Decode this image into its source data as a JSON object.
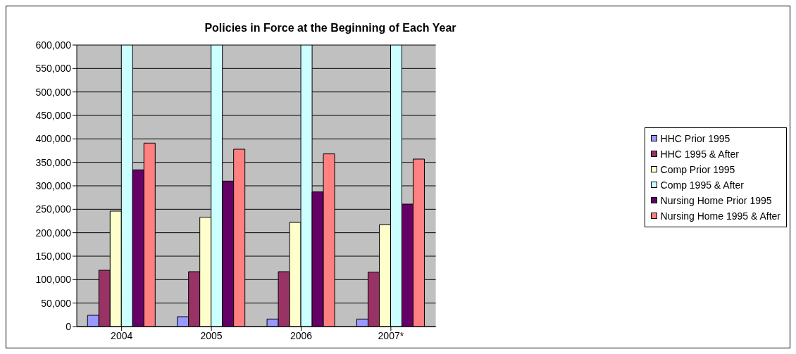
{
  "chart_data": {
    "type": "bar",
    "title": "Policies in Force at the Beginning of Each Year",
    "categories": [
      "2004",
      "2005",
      "2006",
      "2007*"
    ],
    "series": [
      {
        "name": "HHC Prior 1995",
        "color": "#9999ff",
        "values": [
          24000,
          21000,
          16000,
          16000
        ]
      },
      {
        "name": "HHC 1995 & After",
        "color": "#993366",
        "values": [
          120000,
          117000,
          117000,
          116000
        ]
      },
      {
        "name": "Comp Prior 1995",
        "color": "#ffffcc",
        "values": [
          246000,
          233000,
          222000,
          217000
        ]
      },
      {
        "name": "Comp 1995 & After",
        "color": "#ccffff",
        "values": [
          600000,
          600000,
          600000,
          600000
        ]
      },
      {
        "name": "Nursing Home Prior 1995",
        "color": "#660066",
        "values": [
          334000,
          310000,
          287000,
          261000
        ]
      },
      {
        "name": "Nursing Home 1995 & After",
        "color": "#ff8080",
        "values": [
          391000,
          378000,
          368000,
          357000
        ]
      }
    ],
    "ylim": [
      0,
      600000
    ],
    "yticks": [
      0,
      {
        "value": 50000,
        "label": "50,000"
      },
      {
        "value": 100000,
        "label": "100,000"
      },
      {
        "value": 150000,
        "label": "150,000"
      },
      {
        "value": 200000,
        "label": "200,000"
      },
      {
        "value": 250000,
        "label": "250,000"
      },
      {
        "value": 300000,
        "label": "300,000"
      },
      {
        "value": 350000,
        "label": "350,000"
      },
      {
        "value": 400000,
        "label": "400,000"
      },
      {
        "value": 450000,
        "label": "450,000"
      },
      {
        "value": 500000,
        "label": "500,000"
      },
      {
        "value": 550000,
        "label": "550,000"
      },
      {
        "value": 600000,
        "label": "600,000"
      }
    ],
    "grid": "y",
    "legend": "right"
  }
}
